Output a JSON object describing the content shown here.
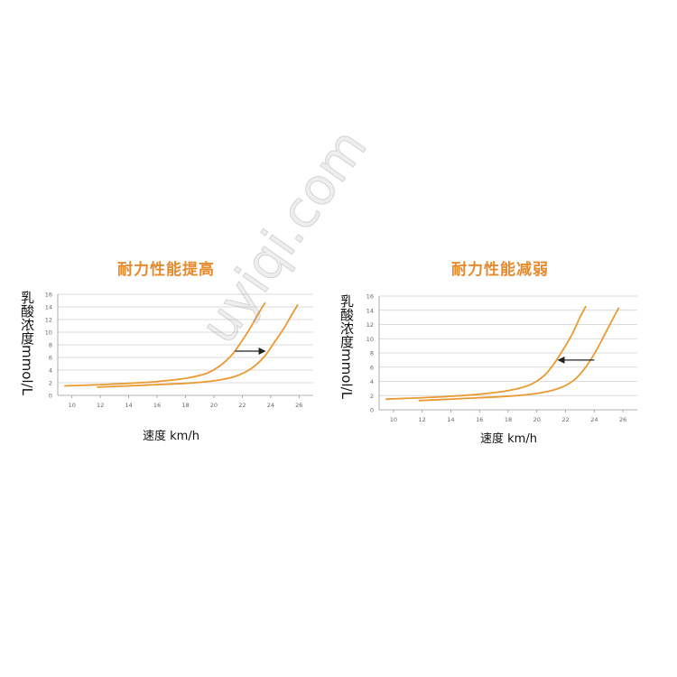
{
  "watermark": "uyiqi.com",
  "colors": {
    "curve": "#eb9a32",
    "grid": "#cfcfcf",
    "axis": "#9a9a9a",
    "tick_text": "#666666",
    "title": "#e8892a",
    "arrow": "#222222"
  },
  "chart_data": [
    {
      "type": "line",
      "title": "耐力性能提高",
      "ylabel_cn": "乳酸浓度",
      "ylabel_unit": "mmol/L",
      "xlabel": "速度 km/h",
      "xlim": [
        9,
        27
      ],
      "ylim": [
        0,
        16
      ],
      "xticks": [
        10,
        12,
        14,
        16,
        18,
        20,
        22,
        24,
        26
      ],
      "yticks": [
        0,
        2,
        4,
        6,
        8,
        10,
        12,
        14,
        16
      ],
      "grid": true,
      "series": [
        {
          "x": [
            9.5,
            12,
            14,
            16,
            18,
            19.5,
            20.5,
            21.3,
            22,
            22.6,
            23.2,
            23.6
          ],
          "y": [
            1.5,
            1.7,
            1.9,
            2.2,
            2.7,
            3.5,
            4.8,
            6.5,
            8.7,
            10.8,
            13.2,
            14.6
          ]
        },
        {
          "x": [
            11.8,
            14,
            16,
            18,
            20,
            21.5,
            22.6,
            23.5,
            24.2,
            24.9,
            25.5,
            25.9
          ],
          "y": [
            1.3,
            1.5,
            1.7,
            1.9,
            2.3,
            3.0,
            4.2,
            6.0,
            8.2,
            10.5,
            12.8,
            14.3
          ]
        }
      ],
      "arrow": {
        "from": [
          21.5,
          7
        ],
        "to": [
          23.6,
          7
        ],
        "direction": "right"
      }
    },
    {
      "type": "line",
      "title": "耐力性能减弱",
      "ylabel_cn": "乳酸浓度",
      "ylabel_unit": "mmol/L",
      "xlabel": "速度 km/h",
      "xlim": [
        9,
        27
      ],
      "ylim": [
        0,
        16
      ],
      "xticks": [
        10,
        12,
        14,
        16,
        18,
        20,
        22,
        24,
        26
      ],
      "yticks": [
        0,
        2,
        4,
        6,
        8,
        10,
        12,
        14,
        16
      ],
      "grid": true,
      "series": [
        {
          "x": [
            9.5,
            12,
            14,
            16,
            18,
            19.5,
            20.5,
            21.2,
            21.9,
            22.5,
            23.0,
            23.4
          ],
          "y": [
            1.5,
            1.7,
            1.9,
            2.2,
            2.7,
            3.5,
            4.8,
            6.5,
            8.7,
            10.8,
            13.0,
            14.5
          ]
        },
        {
          "x": [
            11.8,
            14,
            16,
            18,
            20,
            21.5,
            22.6,
            23.4,
            24.1,
            24.7,
            25.3,
            25.7
          ],
          "y": [
            1.3,
            1.5,
            1.7,
            1.9,
            2.3,
            3.0,
            4.2,
            6.0,
            8.2,
            10.5,
            12.8,
            14.3
          ]
        }
      ],
      "arrow": {
        "from": [
          24.0,
          7
        ],
        "to": [
          21.5,
          7
        ],
        "direction": "left"
      }
    }
  ]
}
